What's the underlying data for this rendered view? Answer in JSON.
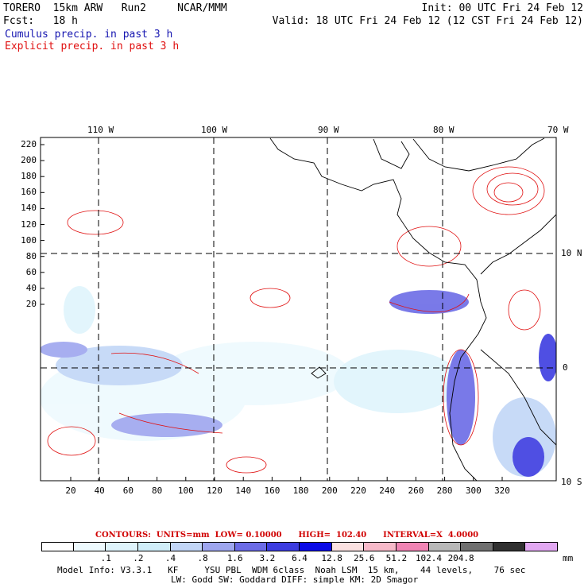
{
  "header": {
    "left_line1": "TORERO  15km ARW   Run2     NCAR/MMM",
    "left_line2": "Fcst:   18 h",
    "right_line1": "Init: 00 UTC Fri 24 Feb 12",
    "right_line2": "Valid: 18 UTC Fri 24 Feb 12 (12 CST Fri 24 Feb 12)",
    "field1": "Cumulus precip. in past 3 h",
    "field2": "Explicit precip. in past 3 h",
    "colors": {
      "field1": "#1515b0",
      "field2": "#e01010"
    }
  },
  "map": {
    "lon_labels": [
      "110 W",
      "100 W",
      "90 W",
      "80 W",
      "70 W"
    ],
    "lat_labels": [
      "10 N",
      "0",
      "10 S"
    ],
    "y_ticks": [
      "220",
      "200",
      "180",
      "160",
      "140",
      "120",
      "100",
      "80",
      "60",
      "40",
      "20"
    ],
    "x_ticks": [
      "20",
      "40",
      "60",
      "80",
      "100",
      "120",
      "140",
      "160",
      "180",
      "200",
      "220",
      "240",
      "260",
      "280",
      "300",
      "320"
    ]
  },
  "contour_info": {
    "text": "CONTOURS:  UNITS=mm  LOW= 0.10000      HIGH=  102.40      INTERVAL=X  4.0000",
    "color": "#d00000"
  },
  "legend": {
    "colors": [
      "#ffffff",
      "#eefafe",
      "#dff4fc",
      "#d0eef9",
      "#c2d6f7",
      "#9ea6ef",
      "#6b6be6",
      "#3c3ce0",
      "#0a0ae6",
      "#fbe1e1",
      "#f7b9c9",
      "#f084b4",
      "#b8b8b8",
      "#707070",
      "#303030",
      "#e2a8f2"
    ],
    "labels": [
      ".1",
      ".2",
      ".4",
      ".8",
      "1.6",
      "3.2",
      "6.4",
      "12.8",
      "25.6",
      "51.2",
      "102.4",
      "204.8"
    ],
    "unit": "mm"
  },
  "footer": {
    "line1": "Model Info: V3.3.1   KF     YSU PBL  WDM 6class  Noah LSM  15 km,    44 levels,    76 sec",
    "line2": "LW: Godd SW: Goddard DIFF: simple KM: 2D Smagor"
  }
}
